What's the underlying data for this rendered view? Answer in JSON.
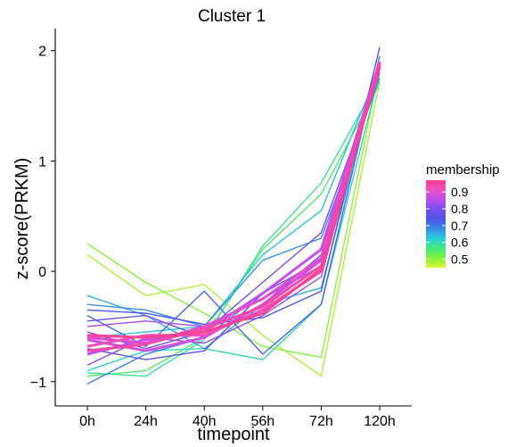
{
  "chart_data": {
    "type": "line",
    "title": "Cluster 1",
    "xlabel": "timepoint",
    "ylabel": "z-score(PRKM)",
    "categories": [
      "0h",
      "24h",
      "40h",
      "56h",
      "72h",
      "120h"
    ],
    "y_ticks": [
      -1,
      0,
      1,
      2
    ],
    "y_tick_labels": [
      "−1",
      "0",
      "1",
      "2"
    ],
    "ylim": [
      -1.22,
      2.2
    ],
    "grid": false,
    "legend": {
      "title": "membership",
      "position": "right",
      "range": [
        0.45,
        0.97
      ],
      "ticks": [
        0.5,
        0.6,
        0.7,
        0.8,
        0.9
      ],
      "tick_labels": [
        "0.5",
        "0.6",
        "0.7",
        "0.8",
        "0.9"
      ],
      "colors": [
        {
          "at": 0.45,
          "color": "#d8f23a"
        },
        {
          "at": 0.5,
          "color": "#8ff23a"
        },
        {
          "at": 0.56,
          "color": "#46eb75"
        },
        {
          "at": 0.62,
          "color": "#24d0d8"
        },
        {
          "at": 0.68,
          "color": "#3a8fe8"
        },
        {
          "at": 0.74,
          "color": "#4e55e8"
        },
        {
          "at": 0.8,
          "color": "#7a4ef0"
        },
        {
          "at": 0.86,
          "color": "#c44ef0"
        },
        {
          "at": 0.92,
          "color": "#f04ebc"
        },
        {
          "at": 0.97,
          "color": "#ff3f8a"
        }
      ]
    },
    "series": [
      {
        "membership": 0.5,
        "values": [
          0.25,
          -0.1,
          -0.38,
          -0.68,
          -0.78,
          1.85
        ]
      },
      {
        "membership": 0.48,
        "values": [
          0.15,
          -0.22,
          -0.12,
          -0.58,
          -0.95,
          1.72
        ]
      },
      {
        "membership": 0.55,
        "values": [
          -0.95,
          -0.9,
          -0.6,
          0.2,
          0.7,
          1.7
        ]
      },
      {
        "membership": 0.58,
        "values": [
          -0.92,
          -0.95,
          -0.62,
          0.23,
          0.8,
          1.75
        ]
      },
      {
        "membership": 0.6,
        "values": [
          -0.9,
          -0.72,
          -0.7,
          -0.8,
          -0.3,
          1.8
        ]
      },
      {
        "membership": 0.63,
        "values": [
          -0.6,
          -0.55,
          -0.5,
          0.15,
          0.55,
          1.85
        ]
      },
      {
        "membership": 0.65,
        "values": [
          -0.22,
          -0.4,
          -0.7,
          -0.3,
          -0.15,
          1.9
        ]
      },
      {
        "membership": 0.68,
        "values": [
          -0.3,
          -0.35,
          -0.5,
          0.1,
          0.3,
          1.75
        ]
      },
      {
        "membership": 0.7,
        "values": [
          -1.02,
          -0.75,
          -0.6,
          -0.2,
          0.2,
          1.8
        ]
      },
      {
        "membership": 0.72,
        "values": [
          -0.4,
          -0.68,
          -0.18,
          -0.75,
          -0.3,
          1.95
        ]
      },
      {
        "membership": 0.74,
        "values": [
          -0.35,
          -0.38,
          -0.48,
          -0.42,
          -0.18,
          2.03
        ]
      },
      {
        "membership": 0.76,
        "values": [
          -0.7,
          -0.8,
          -0.72,
          -0.2,
          0.1,
          1.9
        ]
      },
      {
        "membership": 0.78,
        "values": [
          -0.45,
          -0.4,
          -0.6,
          -0.3,
          0.15,
          1.85
        ]
      },
      {
        "membership": 0.8,
        "values": [
          -0.55,
          -0.7,
          -0.55,
          -0.1,
          0.35,
          1.8
        ]
      },
      {
        "membership": 0.82,
        "values": [
          -0.85,
          -0.6,
          -0.65,
          -0.4,
          -0.05,
          1.9
        ]
      },
      {
        "membership": 0.84,
        "values": [
          -0.5,
          -0.45,
          -0.5,
          -0.25,
          0.05,
          1.85
        ]
      },
      {
        "membership": 0.86,
        "values": [
          -0.75,
          -0.62,
          -0.55,
          -0.2,
          0.2,
          1.9
        ]
      },
      {
        "membership": 0.88,
        "values": [
          -0.62,
          -0.72,
          -0.6,
          -0.3,
          0.1,
          1.85
        ]
      },
      {
        "membership": 0.9,
        "values": [
          -0.6,
          -0.65,
          -0.5,
          -0.25,
          0.12,
          1.9
        ]
      },
      {
        "membership": 0.92,
        "values": [
          -0.68,
          -0.58,
          -0.58,
          -0.35,
          0.0,
          1.88
        ]
      },
      {
        "membership": 0.94,
        "values": [
          -0.72,
          -0.66,
          -0.52,
          -0.32,
          0.05,
          1.85
        ]
      },
      {
        "membership": 0.96,
        "values": [
          -0.58,
          -0.6,
          -0.55,
          -0.38,
          0.02,
          1.87
        ]
      }
    ]
  }
}
